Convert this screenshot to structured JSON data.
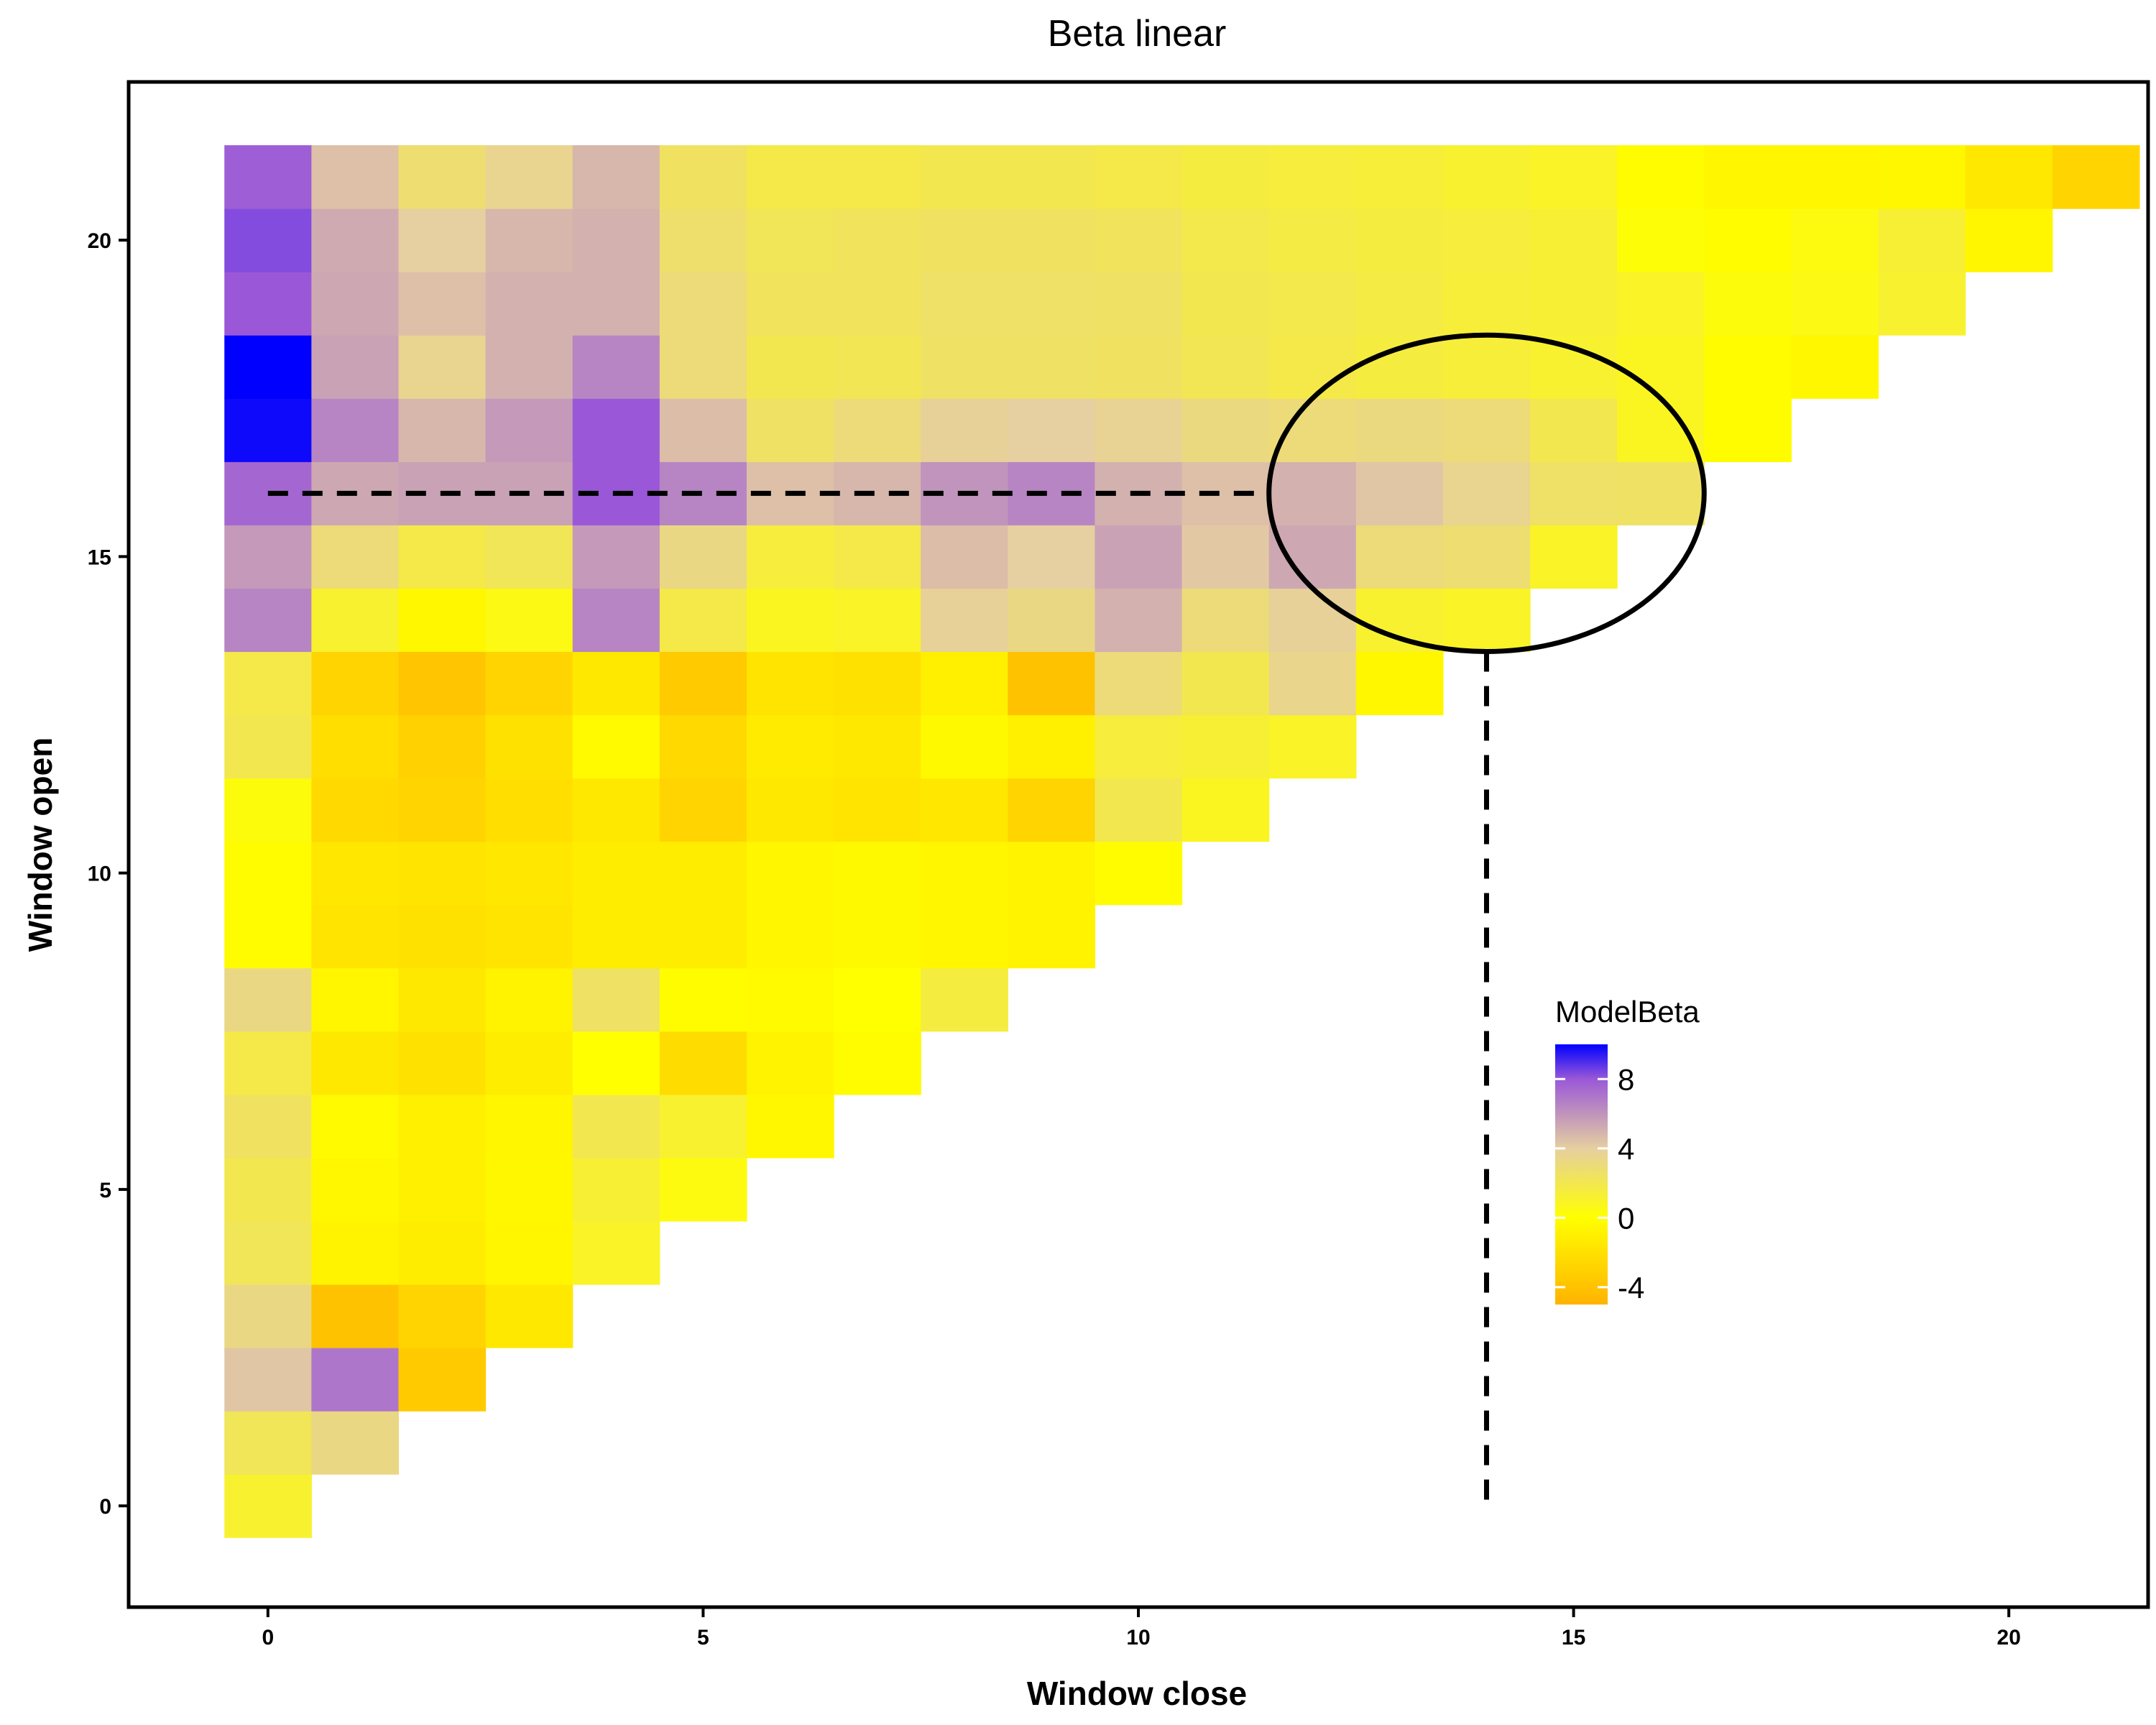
{
  "chart_data": {
    "type": "heatmap",
    "title": "Beta linear",
    "xlabel": "Window close",
    "ylabel": "Window open",
    "xlim": [
      -1.6,
      21.6
    ],
    "ylim": [
      -1.6,
      22.5
    ],
    "x_ticks": [
      0,
      5,
      10,
      15,
      20
    ],
    "y_ticks": [
      0,
      5,
      10,
      15,
      20
    ],
    "grid": false,
    "legend": {
      "title": "ModelBeta",
      "position": "right-inside",
      "labels": [
        "8",
        "4",
        "0",
        "-4"
      ],
      "label_values": [
        8,
        4,
        0,
        -4
      ],
      "range": [
        -5,
        10
      ],
      "colors": [
        "#ffb300",
        "#ffff00",
        "#e6cfa0",
        "#9a58d8",
        "#0000ff"
      ],
      "color_stops": [
        -5,
        0,
        4,
        8,
        10
      ]
    },
    "rows": [
      {
        "y": 0,
        "values": [
          1.2
        ]
      },
      {
        "y": 1,
        "values": [
          2.2,
          3.3
        ]
      },
      {
        "y": 2,
        "values": [
          4.3,
          7.0,
          -3.5
        ]
      },
      {
        "y": 3,
        "values": [
          3.3,
          -4.0,
          -2.8,
          -1.5
        ]
      },
      {
        "y": 4,
        "values": [
          2.2,
          -0.8,
          -1.2,
          -0.6,
          1.0
        ]
      },
      {
        "y": 5,
        "values": [
          2.0,
          -0.5,
          -1.0,
          -0.5,
          1.3,
          0.4
        ]
      },
      {
        "y": 6,
        "values": [
          2.4,
          -0.3,
          -1.0,
          -0.6,
          2.0,
          1.2,
          -0.5
        ]
      },
      {
        "y": 7,
        "values": [
          1.8,
          -1.5,
          -2.0,
          -1.2,
          0.0,
          -2.3,
          -0.8,
          -0.2
        ]
      },
      {
        "y": 8,
        "values": [
          3.3,
          -0.6,
          -1.5,
          -0.8,
          2.5,
          -0.2,
          -0.3,
          0.0,
          1.6
        ]
      },
      {
        "y": 9,
        "values": [
          -0.2,
          -1.8,
          -2.0,
          -1.8,
          -1.2,
          -1.2,
          -0.6,
          -0.4,
          -0.6,
          -0.8
        ]
      },
      {
        "y": 10,
        "values": [
          -0.2,
          -1.6,
          -1.8,
          -1.6,
          -1.2,
          -1.2,
          -0.6,
          -0.4,
          -0.6,
          -0.8,
          -0.2
        ]
      },
      {
        "y": 11,
        "values": [
          0.3,
          -2.5,
          -2.8,
          -2.2,
          -1.5,
          -2.8,
          -1.5,
          -1.8,
          -1.6,
          -2.8,
          2.0,
          0.8
        ]
      },
      {
        "y": 12,
        "values": [
          2.0,
          -2.2,
          -3.0,
          -2.0,
          -0.3,
          -2.5,
          -1.3,
          -1.5,
          -0.4,
          -1.0,
          1.5,
          1.3,
          1.0
        ]
      },
      {
        "y": 13,
        "values": [
          1.8,
          -2.8,
          -3.8,
          -2.8,
          -1.5,
          -3.5,
          -1.8,
          -2.0,
          -1.0,
          -4.0,
          3.0,
          2.0,
          3.5,
          -0.5
        ]
      },
      {
        "y": 14,
        "values": [
          6.5,
          1.2,
          -0.5,
          0.5,
          6.5,
          1.8,
          0.8,
          1.0,
          3.8,
          3.3,
          5.0,
          3.0,
          3.8,
          1.2,
          1.0
        ]
      },
      {
        "y": 15,
        "values": [
          5.8,
          3.0,
          1.8,
          2.2,
          5.8,
          3.3,
          1.5,
          1.8,
          4.6,
          4.0,
          5.5,
          4.2,
          5.3,
          3.0,
          2.8,
          1.0
        ]
      },
      {
        "y": 16,
        "values": [
          7.5,
          5.3,
          5.5,
          5.5,
          8.0,
          6.5,
          4.5,
          4.8,
          6.0,
          6.5,
          5.0,
          4.5,
          5.0,
          4.3,
          3.6,
          2.6,
          2.5
        ]
      },
      {
        "y": 17,
        "values": [
          9.8,
          6.5,
          4.8,
          5.8,
          8.0,
          4.6,
          2.5,
          3.0,
          3.8,
          4.0,
          3.7,
          3.2,
          3.0,
          3.2,
          3.0,
          2.0,
          0.8,
          -0.2
        ]
      },
      {
        "y": 18,
        "values": [
          10.0,
          5.5,
          3.6,
          5.0,
          6.5,
          3.0,
          2.0,
          2.1,
          2.5,
          2.5,
          2.4,
          2.1,
          1.8,
          1.6,
          1.4,
          1.2,
          0.8,
          -0.2,
          -0.5
        ]
      },
      {
        "y": 19,
        "values": [
          8.0,
          5.3,
          4.5,
          5.0,
          5.0,
          3.0,
          2.3,
          2.3,
          2.6,
          2.6,
          2.5,
          2.0,
          1.9,
          1.7,
          1.4,
          1.3,
          1.0,
          0.3,
          0.5,
          1.2
        ]
      },
      {
        "y": 20,
        "values": [
          8.3,
          5.2,
          4.0,
          4.8,
          5.0,
          2.7,
          2.2,
          2.3,
          2.4,
          2.4,
          2.3,
          1.9,
          1.7,
          1.6,
          1.5,
          1.3,
          0.2,
          -0.2,
          0.4,
          1.3,
          -0.6
        ]
      },
      {
        "y": 21,
        "values": [
          7.8,
          4.5,
          2.8,
          3.6,
          4.8,
          2.4,
          1.8,
          1.8,
          2.0,
          2.0,
          1.8,
          1.6,
          1.5,
          1.4,
          1.2,
          1.0,
          -0.2,
          -0.6,
          -0.6,
          -0.5,
          -1.5,
          -2.8
        ]
      }
    ],
    "annotations": {
      "horizontal_dashed_line": {
        "y": 16,
        "x_from": 0,
        "x_to": 11.5
      },
      "vertical_dashed_line": {
        "x": 14,
        "y_from": 0,
        "y_to": 13.5
      },
      "ellipse": {
        "cx": 14,
        "cy": 16,
        "rx": 2.5,
        "ry": 2.5
      }
    }
  }
}
